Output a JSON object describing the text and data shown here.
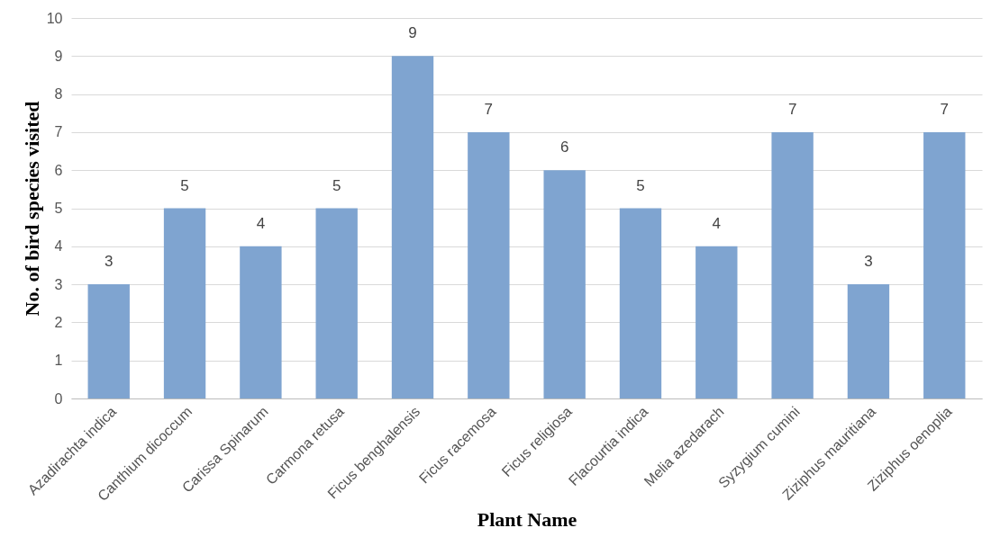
{
  "chart_data": {
    "type": "bar",
    "xlabel": "Plant Name",
    "ylabel": "No. of bird species visited",
    "categories": [
      "Azadirachta indica",
      "Canthium dicoccum",
      "Carissa Spinarum",
      "Carmona retusa",
      "Ficus benghalensis",
      "Ficus racemosa",
      "Ficus religiosa",
      "Flacourtia indica",
      "Melia azedarach",
      "Syzygium cumini",
      "Ziziphus mauritiana",
      "Ziziphus oenoplia"
    ],
    "values": [
      3,
      5,
      4,
      5,
      9,
      7,
      6,
      5,
      4,
      7,
      3,
      7
    ],
    "color": "#7fa4d0",
    "ylim": [
      0,
      10
    ],
    "yticks": [
      0,
      1,
      2,
      3,
      4,
      5,
      6,
      7,
      8,
      9,
      10
    ],
    "grid": "y",
    "data_labels": true
  }
}
